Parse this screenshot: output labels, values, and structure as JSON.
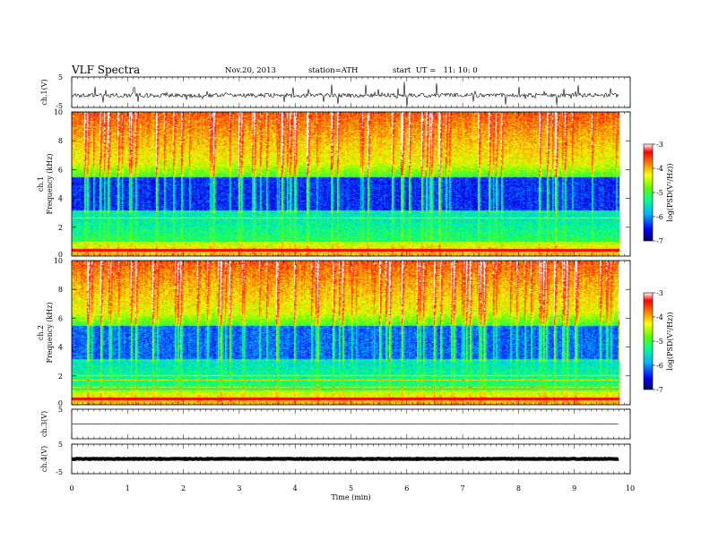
{
  "header": {
    "title": "VLF  Spectra",
    "date": "Nov.20, 2013",
    "station": "station=ATH",
    "start": "start  UT =   11: 10: 0"
  },
  "chart_data": [
    {
      "type": "line",
      "ylabel": "ch.1(V)",
      "ylim": [
        -5,
        5
      ],
      "yticks": [
        "5",
        "-5"
      ],
      "trace": "noisy waveform near -1 V with frequent spikes up to about +3.5 V and down to about -2.5 V"
    },
    {
      "type": "heatmap",
      "ylabel": [
        "ch.1",
        "Frequency  (kHz)"
      ],
      "ylim": [
        0,
        10
      ],
      "yticks": [
        "0",
        "2",
        "4",
        "6",
        "8",
        "10"
      ],
      "colorbar": {
        "label": "log(PSD(V²/Hz))",
        "ticks": [
          "-3",
          "-4",
          "-5",
          "-6",
          "-7"
        ],
        "range": [
          -7,
          -3
        ]
      },
      "colors": [
        "#00007a",
        "#0000ff",
        "#00c8ff",
        "#00ff80",
        "#80ff00",
        "#ffff00",
        "#ff8000",
        "#ff0000",
        "#ffffff"
      ]
    },
    {
      "type": "heatmap",
      "ylabel": [
        "ch.2",
        "Frequency  (kHz)"
      ],
      "ylim": [
        0,
        10
      ],
      "yticks": [
        "0",
        "2",
        "4",
        "6",
        "8",
        "10"
      ],
      "colorbar": {
        "label": "log(PSD(V²/Hz))",
        "ticks": [
          "-3",
          "-4",
          "-5",
          "-6",
          "-7"
        ],
        "range": [
          -7,
          -3
        ]
      }
    },
    {
      "type": "line",
      "ylabel": "ch.3(V)",
      "ylim": [
        -5,
        5
      ],
      "yticks": [
        "5"
      ],
      "trace": "nearly flat line at about 0 V"
    },
    {
      "type": "line",
      "ylabel": "ch.4(V)",
      "ylim": [
        -5,
        5
      ],
      "yticks": [
        "5",
        "-5"
      ],
      "trace": "thick flat band at about 0 V"
    }
  ],
  "xaxis": {
    "label": "Time  (min)",
    "xlim": [
      0,
      10
    ],
    "ticks": [
      "0",
      "1",
      "2",
      "3",
      "4",
      "5",
      "6",
      "7",
      "8",
      "9",
      "10"
    ],
    "data_end": 9.8
  }
}
